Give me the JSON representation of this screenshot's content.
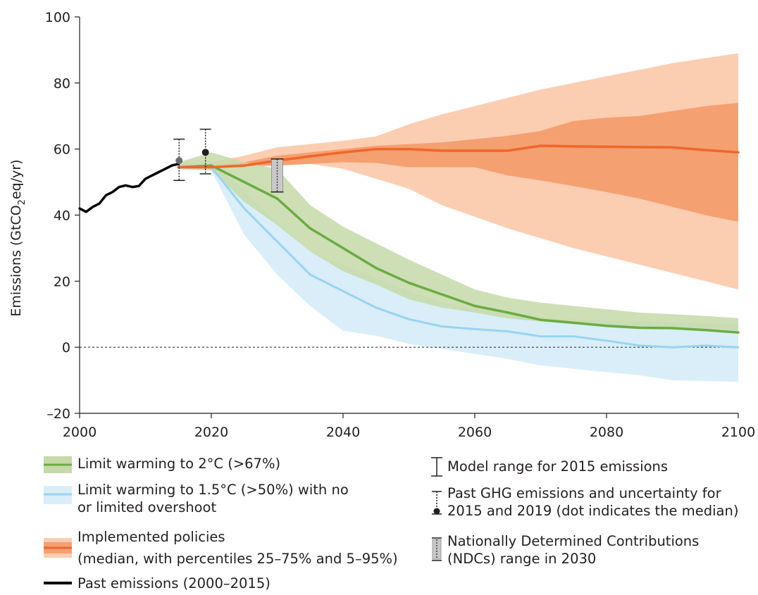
{
  "chart_data": {
    "type": "area",
    "ylabel": "Emissions (GtCO",
    "ylabel_sub": "2",
    "ylabel_end": "eq/yr)",
    "xlim": [
      2000,
      2100
    ],
    "ylim": [
      -20,
      100
    ],
    "x_ticks": [
      "2000",
      "2020",
      "2040",
      "2060",
      "2080",
      "2100"
    ],
    "y_ticks": [
      "–20",
      "0",
      "20",
      "40",
      "60",
      "80",
      "100"
    ],
    "zero_line": "dashed",
    "colors": {
      "green": "#6aac42",
      "green_band": "#c6d9a8",
      "blue": "#97d4f2",
      "blue_band": "#d9eef9",
      "orange": "#f0662a",
      "orange_inner": "#f5a071",
      "orange_outer": "#fbcdb1",
      "black": "#000000",
      "ndc_bar": "#c8c8c8"
    },
    "series": {
      "past_emissions": {
        "x": [
          2000,
          2001,
          2002,
          2003,
          2004,
          2005,
          2006,
          2007,
          2008,
          2009,
          2010,
          2011,
          2012,
          2013,
          2014,
          2015
        ],
        "y": [
          42,
          41,
          42.5,
          43.5,
          46,
          47,
          48.5,
          49,
          48.5,
          48.8,
          51,
          52,
          53,
          54,
          55,
          55.5
        ]
      },
      "implemented_policies": {
        "x": [
          2015,
          2020,
          2025,
          2030,
          2035,
          2040,
          2045,
          2050,
          2055,
          2060,
          2065,
          2070,
          2075,
          2080,
          2085,
          2090,
          2095,
          2100
        ],
        "median": [
          54.5,
          54.5,
          55,
          56.5,
          57.8,
          59,
          60,
          60,
          59.5,
          59.5,
          59.5,
          61,
          60.8,
          60.7,
          60.6,
          60.5,
          59.7,
          59
        ],
        "p25": [
          54,
          54.2,
          54.8,
          55,
          55.5,
          56,
          55.8,
          54.5,
          54.5,
          54.5,
          52,
          50.5,
          48.8,
          47,
          45,
          42.5,
          40,
          38
        ],
        "p75": [
          55,
          55.2,
          56,
          58,
          59,
          60,
          61,
          61.5,
          62,
          63,
          64,
          65.5,
          68.5,
          69.5,
          70,
          71.5,
          73,
          74
        ],
        "p5": [
          54.5,
          54.5,
          55,
          55.5,
          55.5,
          54,
          51,
          48,
          43,
          39.5,
          36,
          33,
          30,
          27.5,
          25,
          22.5,
          20,
          17.5
        ],
        "p95": [
          55,
          56,
          58,
          60.5,
          61.5,
          62.5,
          63.8,
          67.5,
          70.5,
          73,
          75.5,
          78,
          80,
          82,
          84,
          86,
          87.5,
          89
        ]
      },
      "limit_2c": {
        "x": [
          2015,
          2020,
          2025,
          2030,
          2035,
          2040,
          2045,
          2050,
          2055,
          2060,
          2065,
          2070,
          2075,
          2080,
          2085,
          2090,
          2095,
          2100
        ],
        "median": [
          54.5,
          55,
          50,
          45,
          36,
          30,
          24,
          19.5,
          16,
          12.5,
          10.5,
          8.3,
          7.4,
          6.5,
          5.9,
          5.8,
          5.2,
          4.5
        ],
        "low": [
          54,
          53.5,
          44,
          37,
          29,
          23,
          19,
          14.5,
          12,
          10.5,
          8.7,
          7.8,
          7,
          6.5,
          6,
          5.8,
          5.5,
          5
        ],
        "high": [
          56,
          59,
          56,
          54,
          43,
          36.5,
          31.5,
          26.5,
          22,
          17.5,
          15,
          13.5,
          12.5,
          11.5,
          10.5,
          10,
          9.5,
          8.8
        ]
      },
      "limit_15c": {
        "x": [
          2015,
          2020,
          2025,
          2030,
          2035,
          2040,
          2045,
          2050,
          2055,
          2060,
          2065,
          2070,
          2075,
          2080,
          2085,
          2090,
          2095,
          2100
        ],
        "median": [
          54.5,
          54.5,
          42,
          32,
          22,
          17,
          12,
          8.5,
          6.3,
          5.5,
          4.8,
          3.3,
          3.3,
          2,
          0.5,
          0,
          0.5,
          0
        ],
        "low": [
          54,
          53.5,
          34,
          22,
          12.5,
          5,
          3.5,
          1,
          -0.5,
          -2,
          -3.5,
          -5.5,
          -6.5,
          -7.5,
          -8.5,
          -10,
          -10.2,
          -10.5
        ],
        "high": [
          56,
          56.5,
          47,
          38,
          29,
          25,
          21,
          17,
          13.5,
          11.5,
          10,
          9,
          8.5,
          8,
          7.8,
          7.5,
          7.2,
          7
        ]
      }
    },
    "markers": {
      "model_range_2015": {
        "x": 2015,
        "low": 50.5,
        "high": 63,
        "median": 56.5
      },
      "past_ghg_2019": {
        "x": 2019,
        "low": 52.5,
        "high": 66,
        "median": 59
      },
      "ndc_2030": {
        "x": 2030,
        "low": 47,
        "high": 57
      }
    },
    "legend": {
      "items": [
        {
          "lines": [
            "Limit warming to 2°C (>67%)"
          ]
        },
        {
          "lines": [
            "Limit warming to 1.5°C (>50%) with no",
            "or limited overshoot"
          ]
        },
        {
          "lines": [
            "Implemented policies",
            "(median, with percentiles 25–75% and 5–95%)"
          ]
        },
        {
          "lines": [
            "Past emissions (2000–2015)"
          ]
        },
        {
          "lines": [
            "Model range for 2015 emissions"
          ]
        },
        {
          "lines": [
            "Past GHG emissions and uncertainty for",
            "2015 and 2019 (dot indicates the median)"
          ]
        },
        {
          "lines": [
            "Nationally Determined Contributions",
            "(NDCs) range in 2030"
          ]
        }
      ]
    }
  }
}
